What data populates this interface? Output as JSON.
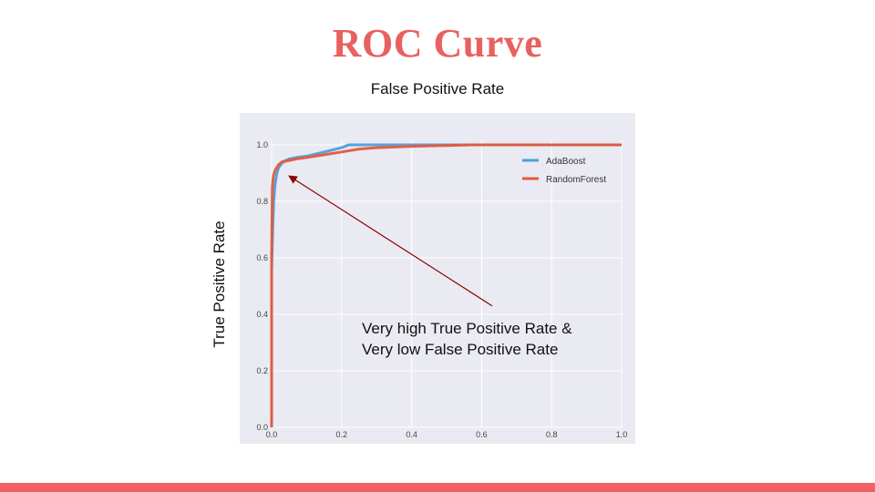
{
  "slide": {
    "title": "ROC Curve",
    "x_caption": "False Positive Rate",
    "y_caption": "True Positive Rate",
    "annotation_lines": [
      "Very high True Positive Rate &",
      "Very low False Positive Rate"
    ]
  },
  "colors": {
    "title": "#e96060",
    "accent_bar": "#f06262",
    "plot_bg": "#eaeaf2",
    "adaboost": "#4c9fdc",
    "randomforest": "#e35a3c",
    "arrow": "#8b0000"
  },
  "chart_data": {
    "type": "line",
    "title": "",
    "xlabel": "False Positive Rate",
    "ylabel": "True Positive Rate",
    "xlim": [
      0,
      1
    ],
    "ylim": [
      0,
      1
    ],
    "xticks": [
      "0.0",
      "0.2",
      "0.4",
      "0.6",
      "0.8",
      "1.0"
    ],
    "yticks": [
      "0.0",
      "0.2",
      "0.4",
      "0.6",
      "0.8",
      "1.0"
    ],
    "grid": true,
    "legend_position": "top-right",
    "series": [
      {
        "name": "AdaBoost",
        "color": "#4c9fdc",
        "x": [
          0,
          0,
          0.003,
          0.006,
          0.01,
          0.015,
          0.02,
          0.03,
          0.04,
          0.05,
          0.07,
          0.1,
          0.15,
          0.2,
          0.22,
          0.3,
          0.5,
          1.0
        ],
        "y": [
          0,
          0.55,
          0.7,
          0.8,
          0.86,
          0.9,
          0.92,
          0.935,
          0.945,
          0.95,
          0.955,
          0.96,
          0.975,
          0.99,
          1.0,
          1.0,
          1.0,
          1.0
        ]
      },
      {
        "name": "RandomForest",
        "color": "#e35a3c",
        "x": [
          0,
          0,
          0.002,
          0.005,
          0.01,
          0.02,
          0.03,
          0.05,
          0.07,
          0.1,
          0.15,
          0.2,
          0.25,
          0.3,
          0.4,
          0.57,
          1.0
        ],
        "y": [
          0,
          0.6,
          0.85,
          0.89,
          0.91,
          0.93,
          0.94,
          0.945,
          0.95,
          0.955,
          0.965,
          0.975,
          0.985,
          0.99,
          0.995,
          1.0,
          1.0
        ]
      }
    ],
    "annotation_arrow": {
      "from": [
        0.63,
        0.43
      ],
      "to": [
        0.05,
        0.89
      ]
    }
  }
}
